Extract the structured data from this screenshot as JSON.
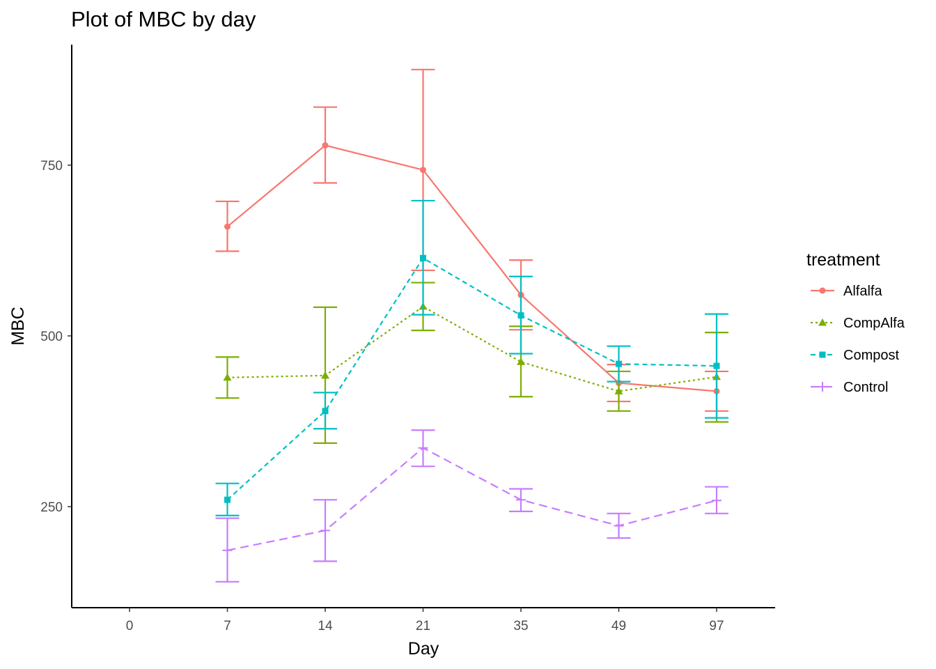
{
  "chart_data": {
    "type": "line",
    "title": "Plot of MBC by day",
    "xlabel": "Day",
    "ylabel": "MBC",
    "x_type": "categorical",
    "categories": [
      "0",
      "7",
      "14",
      "21",
      "35",
      "49",
      "97"
    ],
    "yticks": [
      250,
      500,
      750
    ],
    "ylim": [
      101,
      950
    ],
    "grid": false,
    "legend": {
      "title": "treatment",
      "position": "right"
    },
    "series": [
      {
        "name": "Alfalfa",
        "color": "#F8766D",
        "marker": "circle",
        "linestyle": "solid",
        "points": [
          {
            "x": "7",
            "y": 660,
            "ymin": 624,
            "ymax": 697
          },
          {
            "x": "14",
            "y": 779,
            "ymin": 724,
            "ymax": 835
          },
          {
            "x": "21",
            "y": 743,
            "ymin": 596,
            "ymax": 890
          },
          {
            "x": "35",
            "y": 560,
            "ymin": 509,
            "ymax": 611
          },
          {
            "x": "49",
            "y": 431,
            "ymin": 404,
            "ymax": 458
          },
          {
            "x": "97",
            "y": 419,
            "ymin": 390,
            "ymax": 448
          }
        ]
      },
      {
        "name": "CompAlfa",
        "color": "#7CAE00",
        "marker": "triangle",
        "linestyle": "dotted",
        "points": [
          {
            "x": "7",
            "y": 439,
            "ymin": 409,
            "ymax": 469
          },
          {
            "x": "14",
            "y": 442,
            "ymin": 343,
            "ymax": 542
          },
          {
            "x": "21",
            "y": 543,
            "ymin": 508,
            "ymax": 578
          },
          {
            "x": "35",
            "y": 462,
            "ymin": 411,
            "ymax": 514
          },
          {
            "x": "49",
            "y": 419,
            "ymin": 390,
            "ymax": 448
          },
          {
            "x": "97",
            "y": 440,
            "ymin": 374,
            "ymax": 505
          }
        ]
      },
      {
        "name": "Compost",
        "color": "#00BFC4",
        "marker": "square",
        "linestyle": "dashed",
        "points": [
          {
            "x": "7",
            "y": 260,
            "ymin": 237,
            "ymax": 284
          },
          {
            "x": "14",
            "y": 390,
            "ymin": 364,
            "ymax": 417
          },
          {
            "x": "21",
            "y": 614,
            "ymin": 531,
            "ymax": 698
          },
          {
            "x": "35",
            "y": 530,
            "ymin": 474,
            "ymax": 587
          },
          {
            "x": "49",
            "y": 459,
            "ymin": 433,
            "ymax": 485
          },
          {
            "x": "97",
            "y": 456,
            "ymin": 380,
            "ymax": 532
          }
        ]
      },
      {
        "name": "Control",
        "color": "#C77CFF",
        "marker": "plus",
        "linestyle": "longdash",
        "points": [
          {
            "x": "7",
            "y": 186,
            "ymin": 140,
            "ymax": 233
          },
          {
            "x": "14",
            "y": 215,
            "ymin": 170,
            "ymax": 260
          },
          {
            "x": "21",
            "y": 336,
            "ymin": 309,
            "ymax": 362
          },
          {
            "x": "35",
            "y": 260,
            "ymin": 243,
            "ymax": 276
          },
          {
            "x": "49",
            "y": 222,
            "ymin": 204,
            "ymax": 240
          },
          {
            "x": "97",
            "y": 259,
            "ymin": 240,
            "ymax": 279
          }
        ]
      }
    ]
  }
}
